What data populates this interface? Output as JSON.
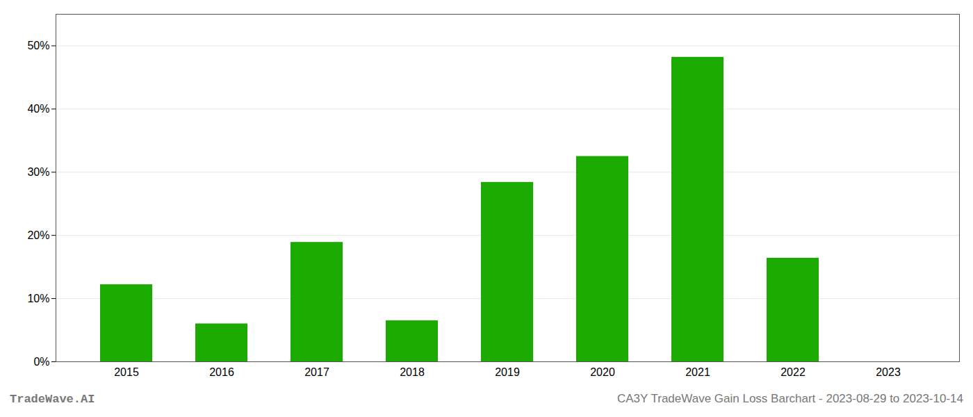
{
  "chart_data": {
    "type": "bar",
    "categories": [
      "2015",
      "2016",
      "2017",
      "2018",
      "2019",
      "2020",
      "2021",
      "2022",
      "2023"
    ],
    "values": [
      0.122,
      0.06,
      0.189,
      0.065,
      0.284,
      0.325,
      0.482,
      0.164,
      0.0
    ],
    "color": "#1aaa00",
    "ylim": [
      0,
      0.55
    ],
    "yticks": [
      {
        "value": 0.0,
        "label": "0%"
      },
      {
        "value": 0.1,
        "label": "10%"
      },
      {
        "value": 0.2,
        "label": "20%"
      },
      {
        "value": 0.3,
        "label": "30%"
      },
      {
        "value": 0.4,
        "label": "40%"
      },
      {
        "value": 0.5,
        "label": "50%"
      }
    ],
    "grid": true,
    "annotations": [
      "TradeWave.AI",
      "CA3Y TradeWave Gain Loss Barchart - 2023-08-29 to 2023-10-14"
    ]
  }
}
